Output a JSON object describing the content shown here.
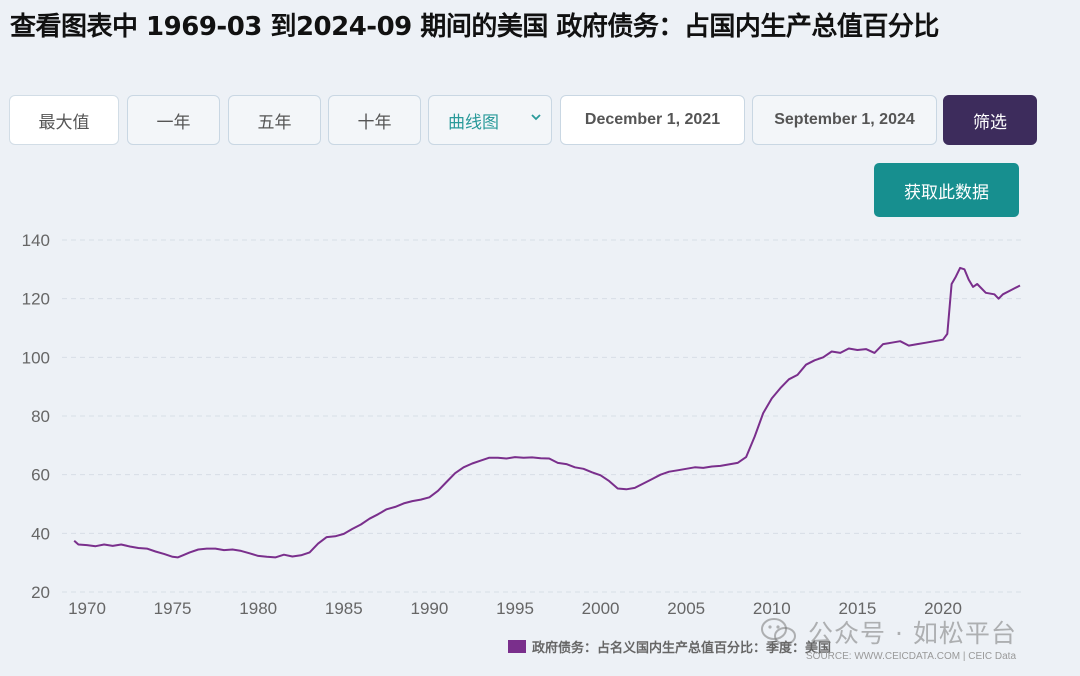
{
  "title": "查看图表中 1969-03 到2024-09 期间的美国 政府债务：占国内生产总值百分比",
  "controls": {
    "max_label": "最大值",
    "one_year_label": "一年",
    "five_year_label": "五年",
    "ten_year_label": "十年",
    "chart_type_value": "曲线图",
    "start_date": "December 1, 2021",
    "end_date": "September 1, 2024",
    "filter_label": "筛选",
    "fetch_label": "获取此数据"
  },
  "legend": {
    "series_label": "政府债务：占名义国内生产总值百分比：季度：美国"
  },
  "source": "SOURCE: WWW.CEICDATA.COM | CEIC Data",
  "watermark": {
    "text": "公众号 · 如松平台",
    "icon": "wechat-icon"
  },
  "colors": {
    "series": "#7a2f8c",
    "filter_button": "#3d2c5c",
    "fetch_button": "#178f8f",
    "select_text": "#2a9a9a",
    "grid": "#d7dee6",
    "background": "#edf1f6"
  },
  "chart_data": {
    "type": "line",
    "title": "",
    "xlabel": "",
    "ylabel": "",
    "xlim": [
      1969,
      2024.75
    ],
    "ylim": [
      20,
      140
    ],
    "yticks": [
      20,
      40,
      60,
      80,
      100,
      120,
      140
    ],
    "xticks": [
      1970,
      1975,
      1980,
      1985,
      1990,
      1995,
      2000,
      2005,
      2010,
      2015,
      2020
    ],
    "grid": "horizontal dashed",
    "legend_position": "bottom",
    "series": [
      {
        "name": "政府债务：占名义国内生产总值百分比：季度：美国",
        "color": "#7a2f8c",
        "points": [
          [
            1969.25,
            37.5
          ],
          [
            1969.5,
            36.2
          ],
          [
            1970,
            36.0
          ],
          [
            1970.5,
            35.6
          ],
          [
            1971,
            36.2
          ],
          [
            1971.5,
            35.7
          ],
          [
            1972,
            36.2
          ],
          [
            1972.5,
            35.5
          ],
          [
            1973,
            35.0
          ],
          [
            1973.5,
            34.8
          ],
          [
            1974,
            33.8
          ],
          [
            1974.5,
            33.0
          ],
          [
            1975,
            32.0
          ],
          [
            1975.3,
            31.8
          ],
          [
            1975.6,
            32.5
          ],
          [
            1976,
            33.5
          ],
          [
            1976.5,
            34.5
          ],
          [
            1977,
            34.8
          ],
          [
            1977.5,
            34.8
          ],
          [
            1978,
            34.3
          ],
          [
            1978.5,
            34.5
          ],
          [
            1979,
            34.0
          ],
          [
            1979.5,
            33.2
          ],
          [
            1980,
            32.3
          ],
          [
            1980.5,
            32.0
          ],
          [
            1981,
            31.8
          ],
          [
            1981.5,
            32.7
          ],
          [
            1982,
            32.1
          ],
          [
            1982.5,
            32.5
          ],
          [
            1983,
            33.5
          ],
          [
            1983.5,
            36.5
          ],
          [
            1984,
            38.7
          ],
          [
            1984.5,
            39.0
          ],
          [
            1985,
            39.8
          ],
          [
            1985.5,
            41.5
          ],
          [
            1986,
            43.0
          ],
          [
            1986.5,
            45.0
          ],
          [
            1987,
            46.5
          ],
          [
            1987.5,
            48.2
          ],
          [
            1988,
            49.0
          ],
          [
            1988.5,
            50.2
          ],
          [
            1989,
            51.0
          ],
          [
            1989.5,
            51.5
          ],
          [
            1990,
            52.3
          ],
          [
            1990.5,
            54.5
          ],
          [
            1991,
            57.5
          ],
          [
            1991.5,
            60.5
          ],
          [
            1992,
            62.5
          ],
          [
            1992.5,
            63.8
          ],
          [
            1993,
            64.8
          ],
          [
            1993.5,
            65.8
          ],
          [
            1994,
            65.8
          ],
          [
            1994.5,
            65.5
          ],
          [
            1995,
            66.0
          ],
          [
            1995.5,
            65.8
          ],
          [
            1996,
            65.9
          ],
          [
            1996.5,
            65.6
          ],
          [
            1997,
            65.5
          ],
          [
            1997.5,
            64.0
          ],
          [
            1998,
            63.6
          ],
          [
            1998.5,
            62.5
          ],
          [
            1999,
            62.0
          ],
          [
            1999.5,
            60.8
          ],
          [
            2000,
            59.8
          ],
          [
            2000.5,
            57.8
          ],
          [
            2001,
            55.3
          ],
          [
            2001.5,
            55.0
          ],
          [
            2002,
            55.5
          ],
          [
            2002.5,
            57.0
          ],
          [
            2003,
            58.5
          ],
          [
            2003.5,
            60.0
          ],
          [
            2004,
            61.0
          ],
          [
            2004.5,
            61.5
          ],
          [
            2005,
            62.0
          ],
          [
            2005.5,
            62.5
          ],
          [
            2006,
            62.3
          ],
          [
            2006.5,
            62.8
          ],
          [
            2007,
            63.0
          ],
          [
            2007.5,
            63.5
          ],
          [
            2008,
            64.0
          ],
          [
            2008.5,
            66.0
          ],
          [
            2009,
            73.0
          ],
          [
            2009.5,
            81.0
          ],
          [
            2010,
            86.0
          ],
          [
            2010.5,
            89.5
          ],
          [
            2011,
            92.5
          ],
          [
            2011.5,
            94.0
          ],
          [
            2012,
            97.5
          ],
          [
            2012.5,
            99.0
          ],
          [
            2013,
            100.0
          ],
          [
            2013.5,
            102.0
          ],
          [
            2014,
            101.5
          ],
          [
            2014.5,
            103.0
          ],
          [
            2015,
            102.5
          ],
          [
            2015.5,
            102.8
          ],
          [
            2016,
            101.5
          ],
          [
            2016.5,
            104.5
          ],
          [
            2017,
            105.0
          ],
          [
            2017.5,
            105.5
          ],
          [
            2018,
            104.0
          ],
          [
            2018.5,
            104.5
          ],
          [
            2019,
            105.0
          ],
          [
            2019.5,
            105.5
          ],
          [
            2020,
            106.0
          ],
          [
            2020.25,
            108.0
          ],
          [
            2020.5,
            125.0
          ],
          [
            2020.75,
            127.5
          ],
          [
            2021,
            130.5
          ],
          [
            2021.25,
            130.0
          ],
          [
            2021.5,
            126.5
          ],
          [
            2021.75,
            124.0
          ],
          [
            2022,
            125.0
          ],
          [
            2022.5,
            122.0
          ],
          [
            2023,
            121.5
          ],
          [
            2023.25,
            120.0
          ],
          [
            2023.5,
            121.5
          ],
          [
            2024,
            123.0
          ],
          [
            2024.5,
            124.5
          ]
        ]
      }
    ]
  }
}
